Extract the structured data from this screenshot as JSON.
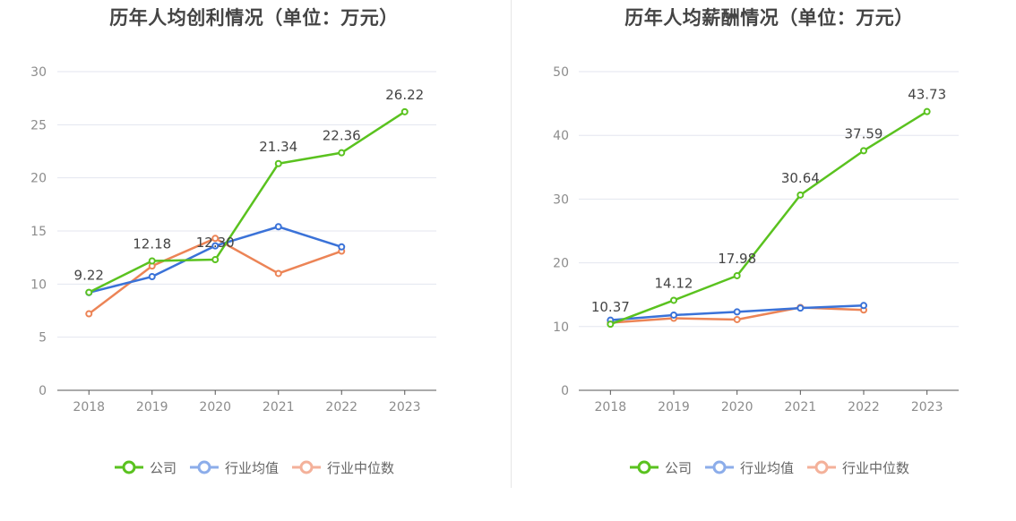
{
  "colors": {
    "company": "#5ac21f",
    "industry_avg": "#3a72d8",
    "industry_median": "#ec8456",
    "legend_company": "#5ac21f",
    "legend_industry_avg": "#8cadea",
    "legend_industry_median": "#f4b19a",
    "grid": "#e3e6ef",
    "axis": "#555555",
    "tick_text": "#8c8c8c",
    "label_text": "#444444"
  },
  "legend": [
    "公司",
    "行业均值",
    "行业中位数"
  ],
  "chart_data": [
    {
      "type": "line",
      "title": "历年人均创利情况（单位：万元）",
      "categories": [
        "2018",
        "2019",
        "2020",
        "2021",
        "2022",
        "2023"
      ],
      "ylim": [
        0,
        30
      ],
      "yticks": [
        0,
        5,
        10,
        15,
        20,
        25,
        30
      ],
      "grid": true,
      "legend_position": "bottom",
      "series": [
        {
          "name": "公司",
          "values": [
            9.22,
            12.18,
            12.3,
            21.34,
            22.36,
            26.22
          ],
          "labels": [
            "9.22",
            "12.18",
            "12.30",
            "21.34",
            "22.36",
            "26.22"
          ]
        },
        {
          "name": "行业均值",
          "values": [
            9.2,
            10.7,
            13.6,
            15.4,
            13.5,
            null
          ]
        },
        {
          "name": "行业中位数",
          "values": [
            7.2,
            11.7,
            14.3,
            11.0,
            13.1,
            null
          ]
        }
      ]
    },
    {
      "type": "line",
      "title": "历年人均薪酬情况（单位：万元）",
      "categories": [
        "2018",
        "2019",
        "2020",
        "2021",
        "2022",
        "2023"
      ],
      "ylim": [
        0,
        50
      ],
      "yticks": [
        0,
        10,
        20,
        30,
        40,
        50
      ],
      "grid": true,
      "legend_position": "bottom",
      "series": [
        {
          "name": "公司",
          "values": [
            10.37,
            14.12,
            17.98,
            30.64,
            37.59,
            43.73
          ],
          "labels": [
            "10.37",
            "14.12",
            "17.98",
            "30.64",
            "37.59",
            "43.73"
          ]
        },
        {
          "name": "行业均值",
          "values": [
            11.0,
            11.8,
            12.3,
            12.9,
            13.3,
            null
          ]
        },
        {
          "name": "行业中位数",
          "values": [
            10.6,
            11.3,
            11.1,
            13.0,
            12.6,
            null
          ]
        }
      ]
    }
  ]
}
